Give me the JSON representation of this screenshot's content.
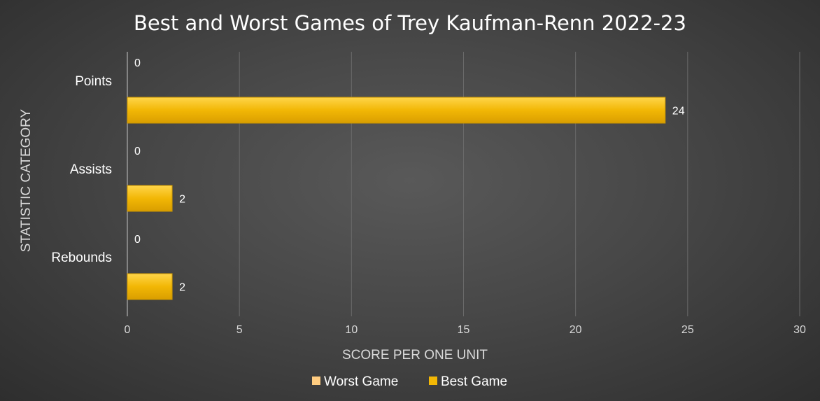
{
  "chart_data": {
    "type": "bar",
    "orientation": "horizontal",
    "title": "Best and Worst Games of Trey Kaufman-Renn 2022-23",
    "xlabel": "SCORE PER ONE UNIT",
    "ylabel": "STATISTIC CATEGORY",
    "categories": [
      "Points",
      "Assists",
      "Rebounds"
    ],
    "series": [
      {
        "name": "Worst Game",
        "values": [
          0,
          0,
          0
        ],
        "color": "#ffcc80"
      },
      {
        "name": "Best Game",
        "values": [
          24,
          2,
          2
        ],
        "color": "#f2b705"
      }
    ],
    "xlim": [
      0,
      30
    ],
    "xticks": [
      0,
      5,
      10,
      15,
      20,
      25,
      30
    ],
    "grid": true,
    "legend": "bottom",
    "background": "#474747"
  }
}
